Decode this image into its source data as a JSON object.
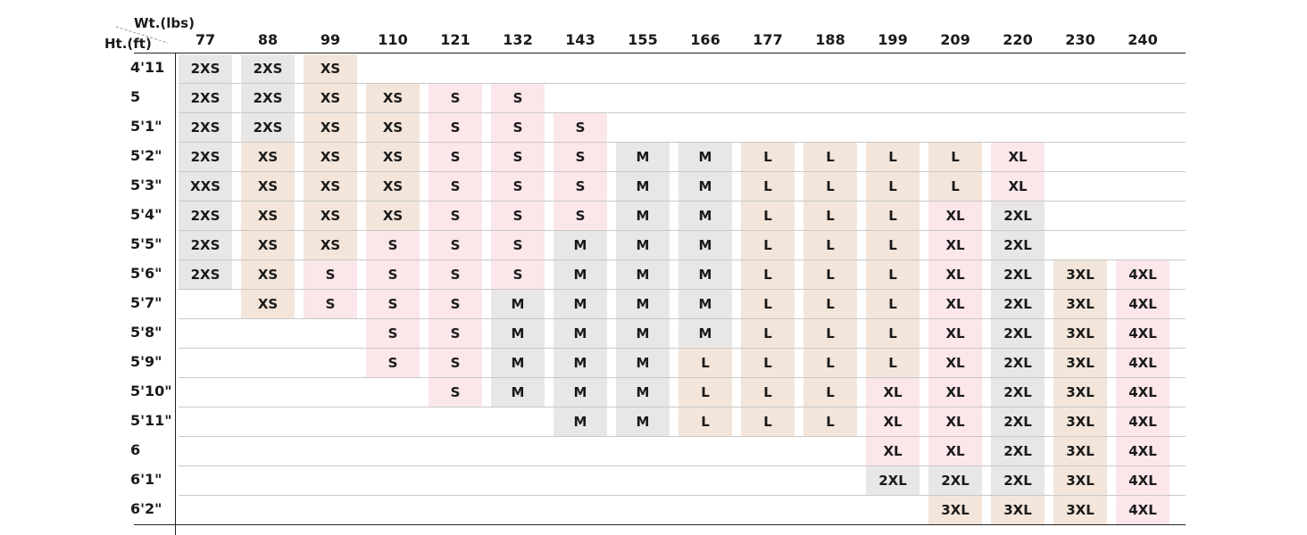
{
  "chart_data": {
    "type": "table",
    "corner_labels": {
      "weight": "Wt.(lbs)",
      "height": "Ht.(ft)"
    },
    "columns": [
      "77",
      "88",
      "99",
      "110",
      "121",
      "132",
      "143",
      "155",
      "166",
      "177",
      "188",
      "199",
      "209",
      "220",
      "230",
      "240"
    ],
    "rows": [
      {
        "height": "4'11",
        "cells": [
          "2XS",
          "2XS",
          "XS",
          "",
          "",
          "",
          "",
          "",
          "",
          "",
          "",
          "",
          "",
          "",
          "",
          ""
        ]
      },
      {
        "height": "5",
        "cells": [
          "2XS",
          "2XS",
          "XS",
          "XS",
          "S",
          "S",
          "",
          "",
          "",
          "",
          "",
          "",
          "",
          "",
          "",
          ""
        ]
      },
      {
        "height": "5'1\"",
        "cells": [
          "2XS",
          "2XS",
          "XS",
          "XS",
          "S",
          "S",
          "S",
          "",
          "",
          "",
          "",
          "",
          "",
          "",
          "",
          ""
        ]
      },
      {
        "height": "5'2\"",
        "cells": [
          "2XS",
          "XS",
          "XS",
          "XS",
          "S",
          "S",
          "S",
          "M",
          "M",
          "L",
          "L",
          "L",
          "L",
          "XL",
          "",
          ""
        ]
      },
      {
        "height": "5'3\"",
        "cells": [
          "XXS",
          "XS",
          "XS",
          "XS",
          "S",
          "S",
          "S",
          "M",
          "M",
          "L",
          "L",
          "L",
          "L",
          "XL",
          "",
          ""
        ]
      },
      {
        "height": "5'4\"",
        "cells": [
          "2XS",
          "XS",
          "XS",
          "XS",
          "S",
          "S",
          "S",
          "M",
          "M",
          "L",
          "L",
          "L",
          "XL",
          "2XL",
          "",
          ""
        ]
      },
      {
        "height": "5'5\"",
        "cells": [
          "2XS",
          "XS",
          "XS",
          "S",
          "S",
          "S",
          "M",
          "M",
          "M",
          "L",
          "L",
          "L",
          "XL",
          "2XL",
          "",
          ""
        ]
      },
      {
        "height": "5'6\"",
        "cells": [
          "2XS",
          "XS",
          "S",
          "S",
          "S",
          "S",
          "M",
          "M",
          "M",
          "L",
          "L",
          "L",
          "XL",
          "2XL",
          "3XL",
          "4XL"
        ]
      },
      {
        "height": "5'7\"",
        "cells": [
          "",
          "XS",
          "S",
          "S",
          "S",
          "M",
          "M",
          "M",
          "M",
          "L",
          "L",
          "L",
          "XL",
          "2XL",
          "3XL",
          "4XL"
        ]
      },
      {
        "height": "5'8\"",
        "cells": [
          "",
          "",
          "",
          "S",
          "S",
          "M",
          "M",
          "M",
          "M",
          "L",
          "L",
          "L",
          "XL",
          "2XL",
          "3XL",
          "4XL"
        ]
      },
      {
        "height": "5'9\"",
        "cells": [
          "",
          "",
          "",
          "S",
          "S",
          "M",
          "M",
          "M",
          "L",
          "L",
          "L",
          "L",
          "XL",
          "2XL",
          "3XL",
          "4XL"
        ]
      },
      {
        "height": "5'10\"",
        "cells": [
          "",
          "",
          "",
          "",
          "S",
          "M",
          "M",
          "M",
          "L",
          "L",
          "L",
          "XL",
          "XL",
          "2XL",
          "3XL",
          "4XL"
        ]
      },
      {
        "height": "5'11\"",
        "cells": [
          "",
          "",
          "",
          "",
          "",
          "",
          "M",
          "M",
          "L",
          "L",
          "L",
          "XL",
          "XL",
          "2XL",
          "3XL",
          "4XL"
        ]
      },
      {
        "height": "6",
        "cells": [
          "",
          "",
          "",
          "",
          "",
          "",
          "",
          "",
          "",
          "",
          "",
          "XL",
          "XL",
          "2XL",
          "3XL",
          "4XL"
        ]
      },
      {
        "height": "6'1\"",
        "cells": [
          "",
          "",
          "",
          "",
          "",
          "",
          "",
          "",
          "",
          "",
          "",
          "2XL",
          "2XL",
          "2XL",
          "3XL",
          "4XL"
        ]
      },
      {
        "height": "6'2\"",
        "cells": [
          "",
          "",
          "",
          "",
          "",
          "",
          "",
          "",
          "",
          "",
          "",
          "",
          "3XL",
          "3XL",
          "3XL",
          "4XL"
        ]
      }
    ],
    "size_colors": {
      "gray": "#e9e7e6",
      "tan": "#f3e5da",
      "pink": "#fbe6ea"
    },
    "grid": true
  }
}
